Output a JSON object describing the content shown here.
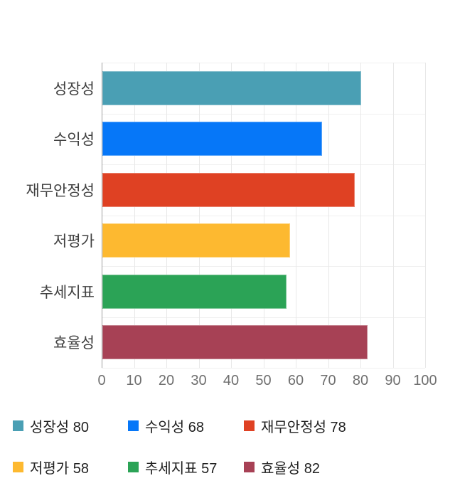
{
  "page": {
    "background": "#ffffff"
  },
  "chart_data": {
    "type": "bar",
    "orientation": "horizontal",
    "title": "",
    "xlabel": "",
    "ylabel": "",
    "categories": [
      "성장성",
      "수익성",
      "재무안정성",
      "저평가",
      "추세지표",
      "효율성"
    ],
    "values": [
      80,
      68,
      78,
      58,
      57,
      82
    ],
    "colors": [
      "#4A9FB4",
      "#0677F8",
      "#DF4123",
      "#FDB930",
      "#2BA356",
      "#A74155"
    ],
    "xlim": [
      0,
      100
    ],
    "x_ticks": [
      0,
      10,
      20,
      30,
      40,
      50,
      60,
      70,
      80,
      90,
      100
    ],
    "grid": true,
    "axis_color": "#9e9e9e",
    "gridline_color": "#e8e8e8",
    "tick_label_color": "#6f6f6f",
    "category_label_color": "#404040",
    "legend": {
      "position": "bottom",
      "entries": [
        {
          "label": "성장성",
          "value": 80,
          "color": "#4A9FB4",
          "text": "성장성 80"
        },
        {
          "label": "수익성",
          "value": 68,
          "color": "#0677F8",
          "text": "수익성 68"
        },
        {
          "label": "재무안정성",
          "value": 78,
          "color": "#DF4123",
          "text": "재무안정성 78"
        },
        {
          "label": "저평가",
          "value": 58,
          "color": "#FDB930",
          "text": "저평가 58"
        },
        {
          "label": "추세지표",
          "value": 57,
          "color": "#2BA356",
          "text": "추세지표 57"
        },
        {
          "label": "효율성",
          "value": 82,
          "color": "#A74155",
          "text": "효율성 82"
        }
      ]
    }
  }
}
